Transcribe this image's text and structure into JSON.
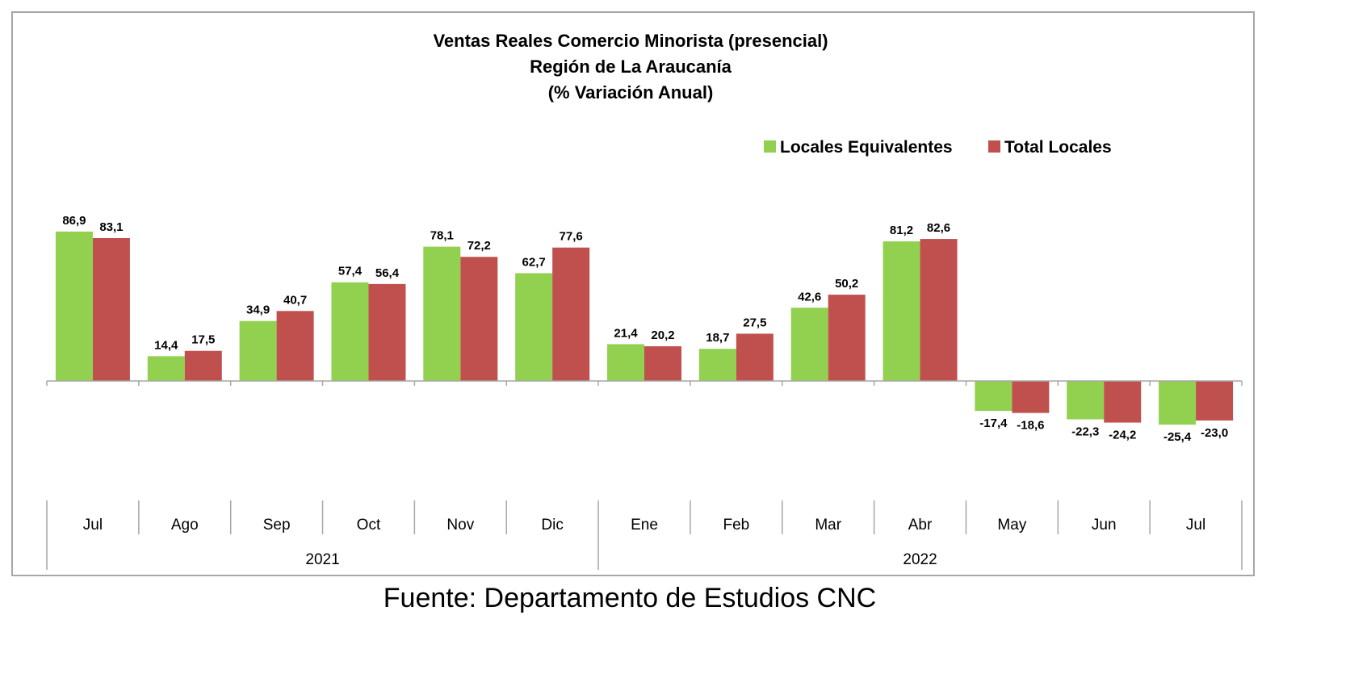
{
  "chart_data": {
    "type": "bar",
    "title_lines": [
      "Ventas Reales Comercio Minorista (presencial)",
      "Región de La Araucanía",
      "(% Variación Anual)"
    ],
    "categories": [
      "Jul",
      "Ago",
      "Sep",
      "Oct",
      "Nov",
      "Dic",
      "Ene",
      "Feb",
      "Mar",
      "Abr",
      "May",
      "Jun",
      "Jul"
    ],
    "groups": [
      {
        "label": "2021",
        "start": 0,
        "end": 5
      },
      {
        "label": "2022",
        "start": 6,
        "end": 12
      }
    ],
    "series": [
      {
        "name": "Locales Equivalentes",
        "color": "#92d050",
        "values": [
          86.9,
          14.4,
          34.9,
          57.4,
          78.1,
          62.7,
          21.4,
          18.7,
          42.6,
          81.2,
          -17.4,
          -22.3,
          -25.4
        ],
        "labels": [
          "86,9",
          "14,4",
          "34,9",
          "57,4",
          "78,1",
          "62,7",
          "21,4",
          "18,7",
          "42,6",
          "81,2",
          "-17,4",
          "-22,3",
          "-25,4"
        ]
      },
      {
        "name": "Total Locales",
        "color": "#c0504d",
        "values": [
          83.1,
          17.5,
          40.7,
          56.4,
          72.2,
          77.6,
          20.2,
          27.5,
          50.2,
          82.6,
          -18.6,
          -24.2,
          -23.0
        ],
        "labels": [
          "83,1",
          "17,5",
          "40,7",
          "56,4",
          "72,2",
          "77,6",
          "20,2",
          "27,5",
          "50,2",
          "82,6",
          "-18,6",
          "-24,2",
          "-23,0"
        ]
      }
    ],
    "legend_position": "top-right",
    "grid": false
  },
  "source": "Fuente: Departamento de Estudios CNC"
}
